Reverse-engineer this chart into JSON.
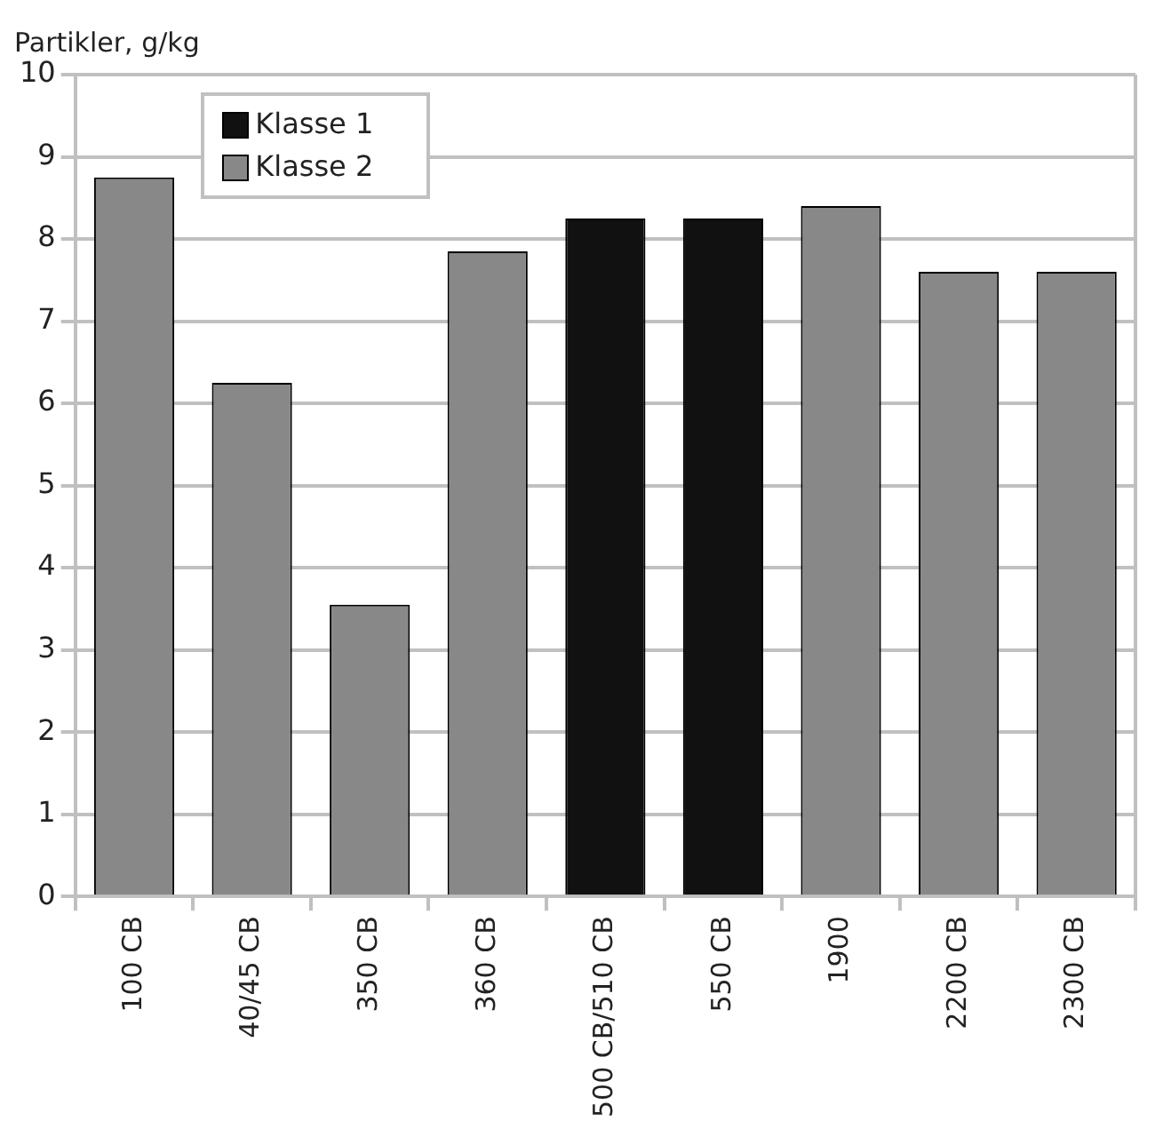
{
  "chart_data": {
    "type": "bar",
    "ylabel": "Partikler, g/kg",
    "categories": [
      "100 CB",
      "40/45 CB",
      "350 CB",
      "360 CB",
      "500 CB/510 CB",
      "550 CB",
      "1900",
      "2200 CB",
      "2300 CB"
    ],
    "series": [
      {
        "name": "Klasse 1",
        "color": "#111111",
        "values": [
          null,
          null,
          null,
          null,
          8.25,
          8.25,
          null,
          null,
          null
        ]
      },
      {
        "name": "Klasse 2",
        "color": "#888888",
        "values": [
          8.75,
          6.25,
          3.55,
          7.85,
          null,
          null,
          8.4,
          7.6,
          7.6
        ]
      }
    ],
    "ylim": [
      0,
      10
    ],
    "yticks": [
      0,
      1,
      2,
      3,
      4,
      5,
      6,
      7,
      8,
      9,
      10
    ],
    "grid": "y",
    "legend": "top left"
  }
}
